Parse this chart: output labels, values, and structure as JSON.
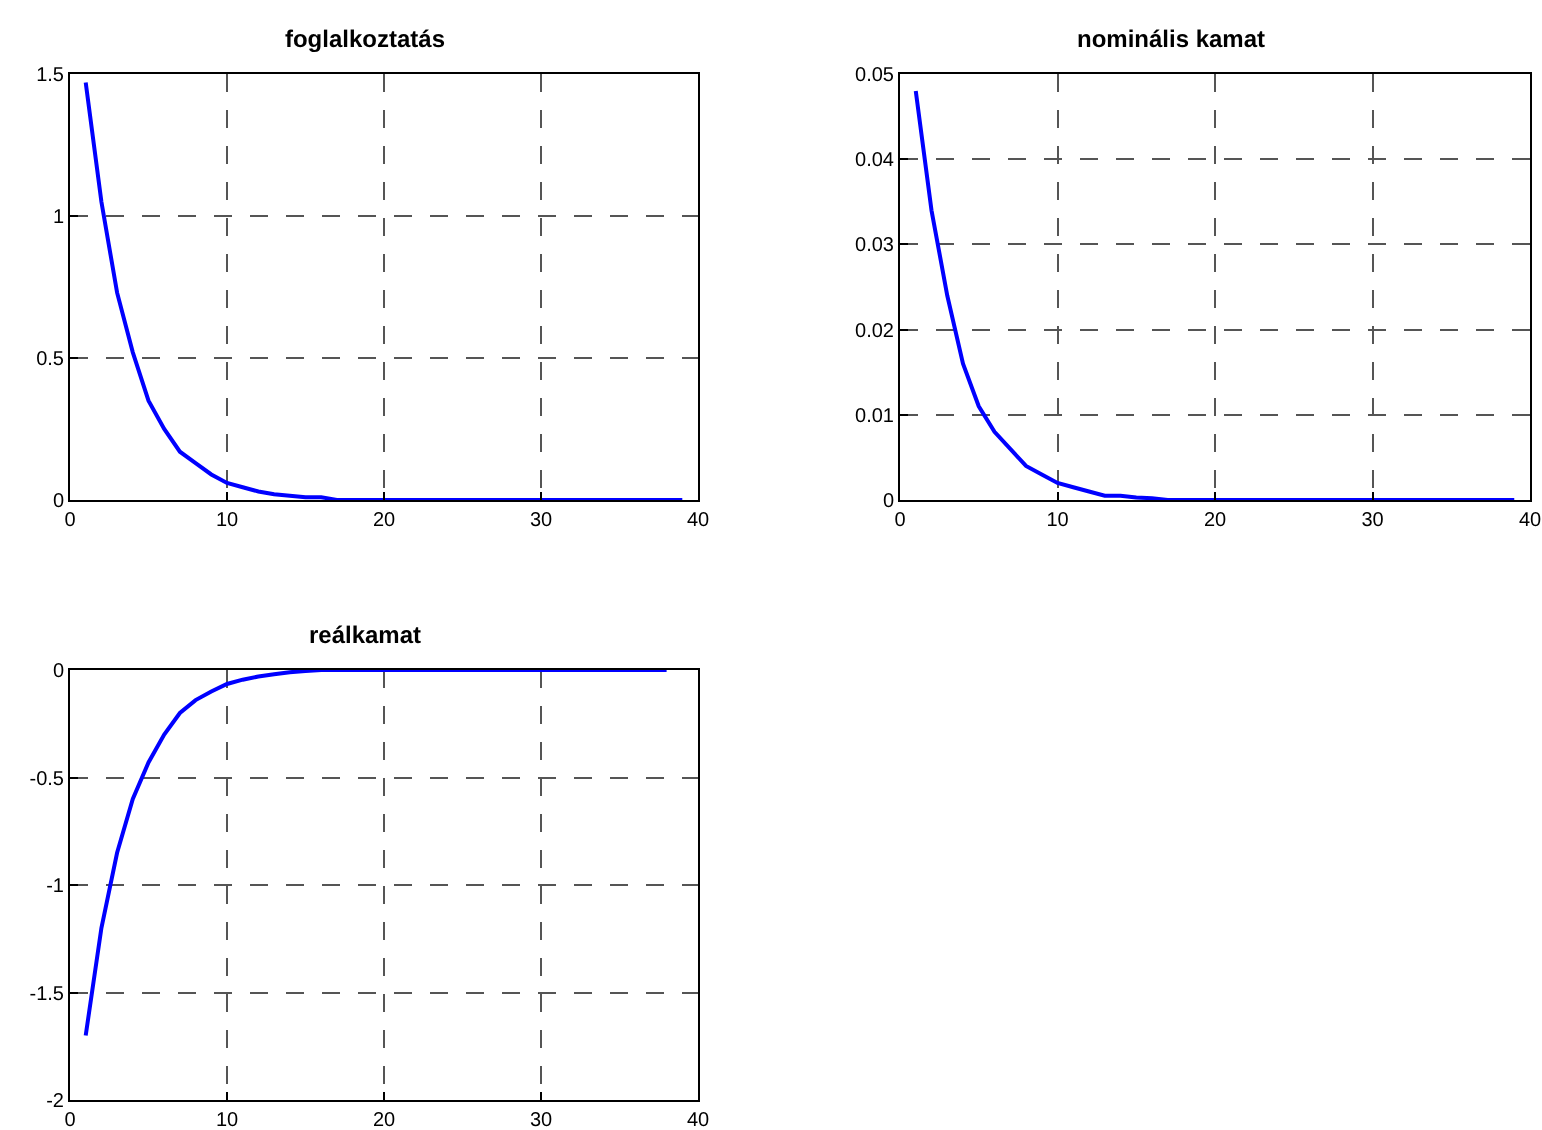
{
  "chart_data": [
    {
      "type": "line",
      "title": "foglalkoztatás",
      "x": [
        1,
        2,
        3,
        4,
        5,
        6,
        7,
        8,
        9,
        10,
        11,
        12,
        13,
        14,
        15,
        16,
        17,
        39
      ],
      "series": [
        {
          "color": "#0000ff",
          "values": [
            1.47,
            1.05,
            0.73,
            0.52,
            0.35,
            0.25,
            0.17,
            0.13,
            0.09,
            0.06,
            0.045,
            0.03,
            0.02,
            0.015,
            0.01,
            0.01,
            0,
            0
          ]
        }
      ],
      "xlim": [
        0,
        40
      ],
      "xticks": [
        0,
        10,
        20,
        30,
        40
      ],
      "ylim": [
        0,
        1.5
      ],
      "yticks": [
        0,
        0.5,
        1,
        1.5
      ],
      "grid": true,
      "line_style": "solid"
    },
    {
      "type": "line",
      "title": "nominális kamat",
      "x": [
        1,
        2,
        3,
        4,
        5,
        6,
        7,
        8,
        9,
        10,
        11,
        12,
        13,
        14,
        15,
        16,
        17,
        39
      ],
      "series": [
        {
          "color": "#0000ff",
          "values": [
            0.048,
            0.034,
            0.024,
            0.016,
            0.011,
            0.008,
            0.006,
            0.004,
            0.003,
            0.002,
            0.0015,
            0.001,
            0.0005,
            0.0005,
            0.0003,
            0.0002,
            0,
            0
          ]
        }
      ],
      "xlim": [
        0,
        40
      ],
      "xticks": [
        0,
        10,
        20,
        30,
        40
      ],
      "ylim": [
        0,
        0.05
      ],
      "yticks": [
        0,
        0.01,
        0.02,
        0.03,
        0.04,
        0.05
      ],
      "grid": true,
      "line_style": "solid"
    },
    {
      "type": "line",
      "title": "reálkamat",
      "x": [
        1,
        2,
        3,
        4,
        5,
        6,
        7,
        8,
        9,
        10,
        11,
        12,
        13,
        14,
        15,
        16,
        38
      ],
      "series": [
        {
          "color": "#0000ff",
          "values": [
            -1.7,
            -1.2,
            -0.85,
            -0.6,
            -0.43,
            -0.3,
            -0.2,
            -0.14,
            -0.1,
            -0.065,
            -0.045,
            -0.03,
            -0.02,
            -0.01,
            -0.005,
            0,
            0
          ]
        }
      ],
      "xlim": [
        0,
        40
      ],
      "xticks": [
        0,
        10,
        20,
        30,
        40
      ],
      "ylim": [
        -2,
        0
      ],
      "yticks": [
        -2,
        -1.5,
        -1,
        -0.5,
        0
      ],
      "grid": true,
      "line_style": "solid"
    }
  ]
}
